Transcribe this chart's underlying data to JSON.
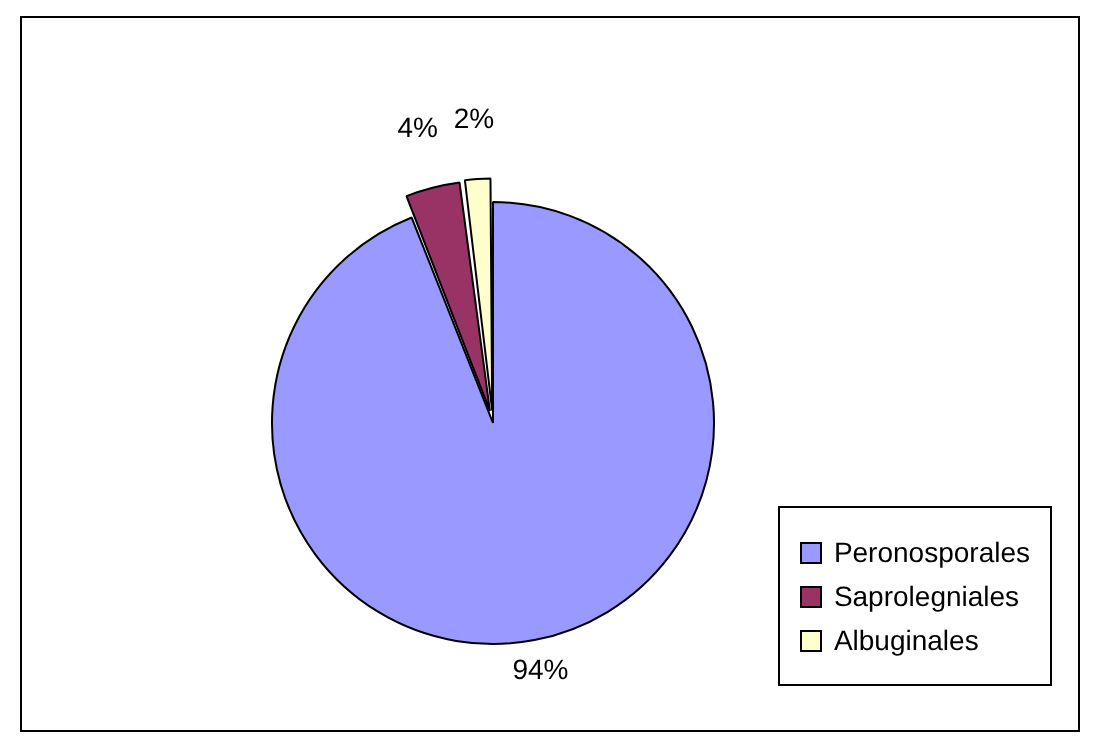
{
  "chart_data": {
    "type": "pie",
    "categories": [
      "Peronosporales",
      "Saprolegniales",
      "Albuginales"
    ],
    "values": [
      94,
      4,
      2
    ],
    "colors": [
      "#9999ff",
      "#993366",
      "#ffffcc"
    ],
    "value_labels": [
      "94%",
      "4%",
      "2%"
    ],
    "legend": "bottom right"
  }
}
